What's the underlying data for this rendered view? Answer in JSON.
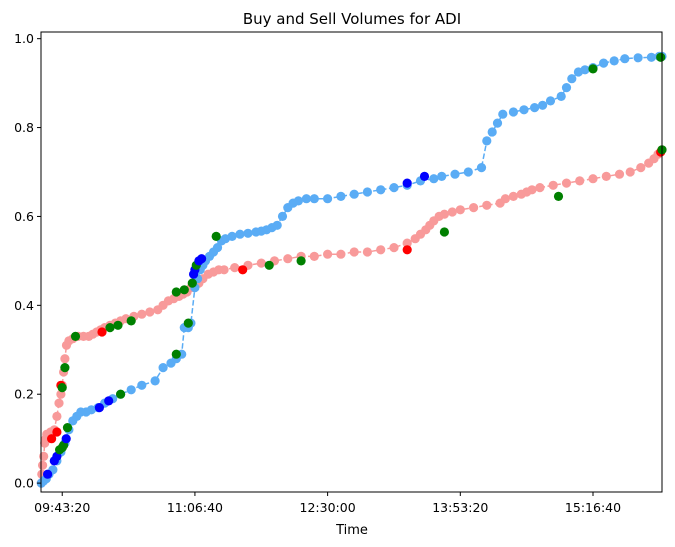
{
  "chart_data": {
    "type": "line",
    "title": "Buy and Sell Volumes for ADI",
    "xlabel": "Time",
    "ylabel": "",
    "x_tick_labels": [
      "09:43:20",
      "11:06:40",
      "12:30:00",
      "13:53:20",
      "15:16:40"
    ],
    "x_tick_seconds": [
      35000,
      40000,
      45000,
      50000,
      55000
    ],
    "xlim_seconds": [
      34200,
      57600
    ],
    "ylim": [
      -0.02,
      1.015
    ],
    "y_ticks": [
      0.0,
      0.2,
      0.4,
      0.6,
      0.8,
      1.0
    ],
    "y_tick_labels": [
      "0.0",
      "0.2",
      "0.4",
      "0.6",
      "0.8",
      "1.0"
    ],
    "grid": false,
    "series": [
      {
        "color": "#f89a9a",
        "line_style": "dashed",
        "points": [
          [
            34210,
            0.0
          ],
          [
            34230,
            0.02
          ],
          [
            34260,
            0.04
          ],
          [
            34300,
            0.06
          ],
          [
            34340,
            0.09
          ],
          [
            34380,
            0.1
          ],
          [
            34420,
            0.11
          ],
          [
            34560,
            0.115
          ],
          [
            34700,
            0.12
          ],
          [
            34800,
            0.15
          ],
          [
            34880,
            0.18
          ],
          [
            34950,
            0.2
          ],
          [
            35000,
            0.22
          ],
          [
            35050,
            0.25
          ],
          [
            35100,
            0.28
          ],
          [
            35160,
            0.31
          ],
          [
            35250,
            0.32
          ],
          [
            35400,
            0.325
          ],
          [
            35600,
            0.33
          ],
          [
            35800,
            0.33
          ],
          [
            36000,
            0.33
          ],
          [
            36150,
            0.335
          ],
          [
            36300,
            0.34
          ],
          [
            36450,
            0.345
          ],
          [
            36600,
            0.35
          ],
          [
            36800,
            0.355
          ],
          [
            37000,
            0.36
          ],
          [
            37200,
            0.365
          ],
          [
            37400,
            0.37
          ],
          [
            37700,
            0.375
          ],
          [
            38000,
            0.38
          ],
          [
            38300,
            0.385
          ],
          [
            38600,
            0.39
          ],
          [
            38800,
            0.4
          ],
          [
            39000,
            0.41
          ],
          [
            39200,
            0.415
          ],
          [
            39400,
            0.42
          ],
          [
            39550,
            0.425
          ],
          [
            39700,
            0.43
          ],
          [
            39850,
            0.44
          ],
          [
            40000,
            0.445
          ],
          [
            40150,
            0.45
          ],
          [
            40300,
            0.46
          ],
          [
            40500,
            0.47
          ],
          [
            40700,
            0.475
          ],
          [
            40900,
            0.48
          ],
          [
            41100,
            0.48
          ],
          [
            41500,
            0.485
          ],
          [
            42000,
            0.49
          ],
          [
            42500,
            0.495
          ],
          [
            43000,
            0.5
          ],
          [
            43500,
            0.505
          ],
          [
            44000,
            0.51
          ],
          [
            44500,
            0.51
          ],
          [
            45000,
            0.515
          ],
          [
            45500,
            0.515
          ],
          [
            46000,
            0.52
          ],
          [
            46500,
            0.52
          ],
          [
            47000,
            0.525
          ],
          [
            47500,
            0.53
          ],
          [
            48000,
            0.54
          ],
          [
            48300,
            0.55
          ],
          [
            48500,
            0.56
          ],
          [
            48700,
            0.57
          ],
          [
            48850,
            0.58
          ],
          [
            49000,
            0.59
          ],
          [
            49200,
            0.6
          ],
          [
            49400,
            0.605
          ],
          [
            49700,
            0.61
          ],
          [
            50000,
            0.615
          ],
          [
            50500,
            0.62
          ],
          [
            51000,
            0.625
          ],
          [
            51500,
            0.63
          ],
          [
            51700,
            0.64
          ],
          [
            52000,
            0.645
          ],
          [
            52300,
            0.65
          ],
          [
            52500,
            0.655
          ],
          [
            52700,
            0.66
          ],
          [
            53000,
            0.665
          ],
          [
            53500,
            0.67
          ],
          [
            54000,
            0.675
          ],
          [
            54500,
            0.68
          ],
          [
            55000,
            0.685
          ],
          [
            55500,
            0.69
          ],
          [
            56000,
            0.695
          ],
          [
            56400,
            0.7
          ],
          [
            56800,
            0.71
          ],
          [
            57100,
            0.72
          ],
          [
            57300,
            0.73
          ],
          [
            57450,
            0.74
          ],
          [
            57600,
            0.75
          ]
        ],
        "markers": [
          {
            "x": 34600,
            "y": 0.1,
            "color": "#ff0000"
          },
          {
            "x": 34800,
            "y": 0.115,
            "color": "#ff0000"
          },
          {
            "x": 34950,
            "y": 0.22,
            "color": "#ff0000"
          },
          {
            "x": 35000,
            "y": 0.215,
            "color": "#008000"
          },
          {
            "x": 35100,
            "y": 0.26,
            "color": "#008000"
          },
          {
            "x": 35500,
            "y": 0.33,
            "color": "#008000"
          },
          {
            "x": 36500,
            "y": 0.34,
            "color": "#ff0000"
          },
          {
            "x": 36800,
            "y": 0.35,
            "color": "#008000"
          },
          {
            "x": 37100,
            "y": 0.355,
            "color": "#008000"
          },
          {
            "x": 37600,
            "y": 0.365,
            "color": "#008000"
          },
          {
            "x": 39300,
            "y": 0.43,
            "color": "#008000"
          },
          {
            "x": 39600,
            "y": 0.435,
            "color": "#008000"
          },
          {
            "x": 41800,
            "y": 0.48,
            "color": "#ff0000"
          },
          {
            "x": 42800,
            "y": 0.49,
            "color": "#008000"
          },
          {
            "x": 44000,
            "y": 0.5,
            "color": "#008000"
          },
          {
            "x": 48000,
            "y": 0.525,
            "color": "#ff0000"
          },
          {
            "x": 49400,
            "y": 0.565,
            "color": "#008000"
          },
          {
            "x": 53700,
            "y": 0.645,
            "color": "#008000"
          },
          {
            "x": 57550,
            "y": 0.745,
            "color": "#ff0000"
          },
          {
            "x": 57600,
            "y": 0.75,
            "color": "#008000"
          }
        ]
      },
      {
        "color": "#5aacf5",
        "line_style": "dashed",
        "points": [
          [
            34210,
            0.0
          ],
          [
            34300,
            0.005
          ],
          [
            34400,
            0.01
          ],
          [
            34500,
            0.02
          ],
          [
            34650,
            0.03
          ],
          [
            34800,
            0.05
          ],
          [
            34950,
            0.07
          ],
          [
            35100,
            0.09
          ],
          [
            35250,
            0.12
          ],
          [
            35400,
            0.14
          ],
          [
            35550,
            0.15
          ],
          [
            35700,
            0.16
          ],
          [
            35900,
            0.16
          ],
          [
            36100,
            0.165
          ],
          [
            36350,
            0.17
          ],
          [
            36600,
            0.18
          ],
          [
            36900,
            0.19
          ],
          [
            37200,
            0.2
          ],
          [
            37600,
            0.21
          ],
          [
            38000,
            0.22
          ],
          [
            38500,
            0.23
          ],
          [
            38800,
            0.26
          ],
          [
            39100,
            0.27
          ],
          [
            39300,
            0.28
          ],
          [
            39500,
            0.29
          ],
          [
            39600,
            0.35
          ],
          [
            39750,
            0.35
          ],
          [
            39850,
            0.36
          ],
          [
            40000,
            0.44
          ],
          [
            40100,
            0.46
          ],
          [
            40200,
            0.48
          ],
          [
            40300,
            0.49
          ],
          [
            40400,
            0.5
          ],
          [
            40550,
            0.51
          ],
          [
            40700,
            0.52
          ],
          [
            40850,
            0.53
          ],
          [
            41000,
            0.545
          ],
          [
            41150,
            0.55
          ],
          [
            41400,
            0.555
          ],
          [
            41700,
            0.56
          ],
          [
            42000,
            0.562
          ],
          [
            42300,
            0.565
          ],
          [
            42500,
            0.567
          ],
          [
            42700,
            0.57
          ],
          [
            42900,
            0.575
          ],
          [
            43100,
            0.58
          ],
          [
            43300,
            0.6
          ],
          [
            43500,
            0.62
          ],
          [
            43700,
            0.63
          ],
          [
            43900,
            0.635
          ],
          [
            44200,
            0.64
          ],
          [
            44500,
            0.64
          ],
          [
            45000,
            0.64
          ],
          [
            45500,
            0.645
          ],
          [
            46000,
            0.65
          ],
          [
            46500,
            0.655
          ],
          [
            47000,
            0.66
          ],
          [
            47500,
            0.665
          ],
          [
            48000,
            0.67
          ],
          [
            48500,
            0.68
          ],
          [
            49000,
            0.685
          ],
          [
            49300,
            0.69
          ],
          [
            49800,
            0.695
          ],
          [
            50300,
            0.7
          ],
          [
            50800,
            0.71
          ],
          [
            51000,
            0.77
          ],
          [
            51200,
            0.79
          ],
          [
            51400,
            0.81
          ],
          [
            51600,
            0.83
          ],
          [
            52000,
            0.835
          ],
          [
            52400,
            0.84
          ],
          [
            52800,
            0.845
          ],
          [
            53100,
            0.85
          ],
          [
            53400,
            0.86
          ],
          [
            53800,
            0.87
          ],
          [
            54000,
            0.89
          ],
          [
            54200,
            0.91
          ],
          [
            54450,
            0.925
          ],
          [
            54700,
            0.93
          ],
          [
            55000,
            0.935
          ],
          [
            55400,
            0.945
          ],
          [
            55800,
            0.95
          ],
          [
            56200,
            0.955
          ],
          [
            56700,
            0.957
          ],
          [
            57200,
            0.958
          ],
          [
            57500,
            0.96
          ],
          [
            57600,
            0.96
          ]
        ],
        "markers": [
          {
            "x": 34450,
            "y": 0.02,
            "color": "#0000ff"
          },
          {
            "x": 34700,
            "y": 0.05,
            "color": "#0000ff"
          },
          {
            "x": 34800,
            "y": 0.06,
            "color": "#0000ff"
          },
          {
            "x": 34900,
            "y": 0.075,
            "color": "#008000"
          },
          {
            "x": 35000,
            "y": 0.08,
            "color": "#008000"
          },
          {
            "x": 35050,
            "y": 0.085,
            "color": "#008000"
          },
          {
            "x": 35150,
            "y": 0.1,
            "color": "#0000ff"
          },
          {
            "x": 35200,
            "y": 0.125,
            "color": "#008000"
          },
          {
            "x": 36400,
            "y": 0.17,
            "color": "#0000ff"
          },
          {
            "x": 36750,
            "y": 0.185,
            "color": "#0000ff"
          },
          {
            "x": 37200,
            "y": 0.2,
            "color": "#008000"
          },
          {
            "x": 39300,
            "y": 0.29,
            "color": "#008000"
          },
          {
            "x": 39750,
            "y": 0.36,
            "color": "#008000"
          },
          {
            "x": 39900,
            "y": 0.45,
            "color": "#008000"
          },
          {
            "x": 39950,
            "y": 0.47,
            "color": "#0000ff"
          },
          {
            "x": 40000,
            "y": 0.48,
            "color": "#0000ff"
          },
          {
            "x": 40050,
            "y": 0.49,
            "color": "#008000"
          },
          {
            "x": 40150,
            "y": 0.5,
            "color": "#0000ff"
          },
          {
            "x": 40250,
            "y": 0.505,
            "color": "#0000ff"
          },
          {
            "x": 40800,
            "y": 0.555,
            "color": "#008000"
          },
          {
            "x": 48000,
            "y": 0.675,
            "color": "#0000ff"
          },
          {
            "x": 48650,
            "y": 0.69,
            "color": "#0000ff"
          },
          {
            "x": 55000,
            "y": 0.932,
            "color": "#008000"
          },
          {
            "x": 57550,
            "y": 0.958,
            "color": "#008000"
          }
        ]
      }
    ]
  }
}
